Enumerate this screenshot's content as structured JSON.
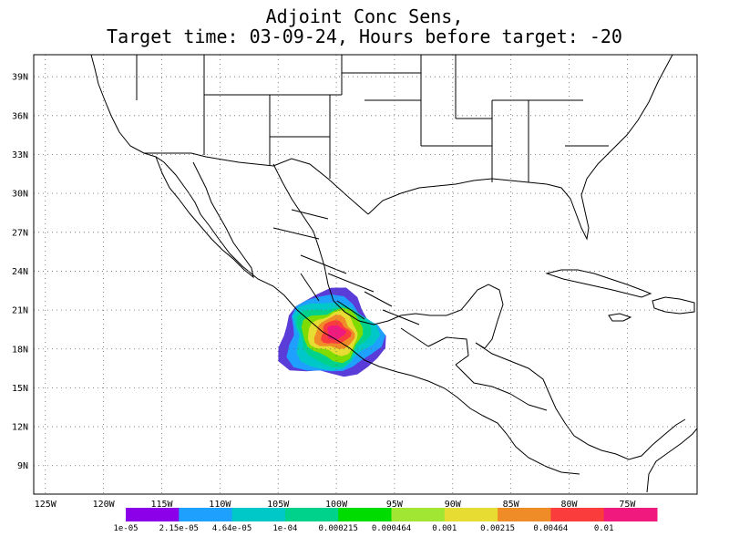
{
  "title": {
    "line1": "Adjoint Conc Sens,",
    "line2": "Target time: 03-09-24, Hours before target: -20"
  },
  "map": {
    "lon_range": [
      -126,
      -69
    ],
    "lat_range": [
      6.8,
      40.7
    ],
    "lat_ticks": [
      "39N",
      "36N",
      "33N",
      "30N",
      "27N",
      "24N",
      "21N",
      "18N",
      "15N",
      "12N",
      "9N"
    ],
    "lon_ticks": [
      "125W",
      "120W",
      "115W",
      "110W",
      "105W",
      "100W",
      "95W",
      "90W",
      "85W",
      "80W",
      "75W"
    ],
    "gridlines": "dotted"
  },
  "colorbar": {
    "colors": [
      "#8b00e8",
      "#1ea0ff",
      "#00c8c8",
      "#00d28c",
      "#00dc00",
      "#a0e632",
      "#e6dc32",
      "#f08c28",
      "#fa3c3c",
      "#f0197d"
    ],
    "labels": [
      "1e-05",
      "2.15e-05",
      "4.64e-05",
      "1e-04",
      "0.000215",
      "0.000464",
      "0.001",
      "0.00215",
      "0.00464",
      "0.01"
    ]
  },
  "sensitivity": {
    "center_lon": -100,
    "center_lat": 19.3,
    "level_colors_outer_to_inner": [
      "#5a3cd8",
      "#1ea0ff",
      "#00c8c8",
      "#00d28c",
      "#80dc00",
      "#e6dc32",
      "#f08c28",
      "#fa3c3c",
      "#f0197d"
    ]
  }
}
